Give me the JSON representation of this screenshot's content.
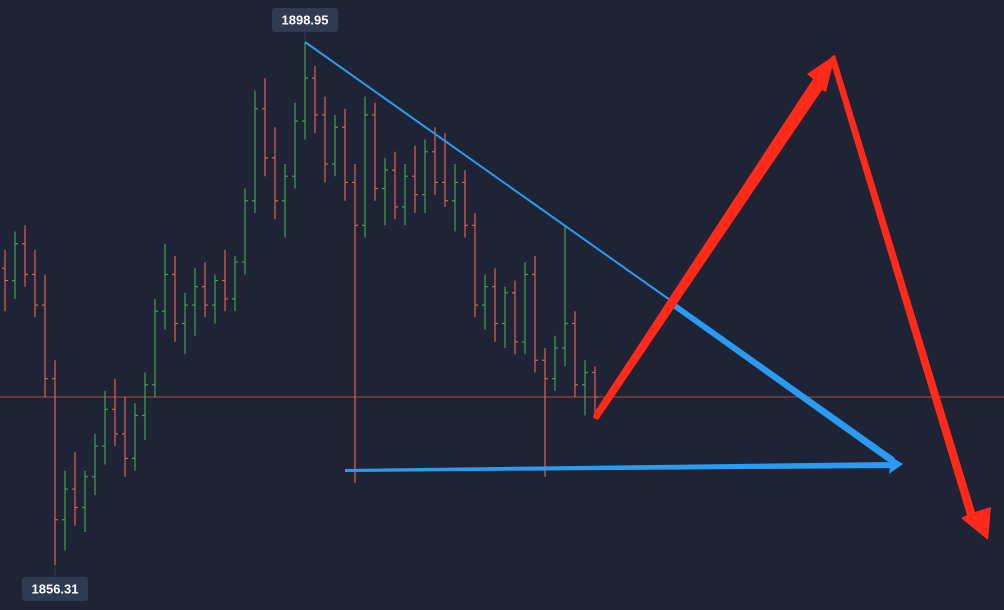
{
  "chart_data": {
    "type": "ohlc",
    "open": [
      1880.5,
      1879.5,
      1882.5,
      1880.0,
      1877.5,
      1871.5,
      1860.0,
      1862.5,
      1861.0,
      1863.5,
      1866.0,
      1869.0,
      1867.0,
      1865.0,
      1868.5,
      1871.0,
      1877.0,
      1880.0,
      1876.0,
      1877.5,
      1879.0,
      1877.5,
      1879.5,
      1878.0,
      1881.0,
      1886.0,
      1893.5,
      1889.5,
      1886.0,
      1888.0,
      1892.5,
      1896.0,
      1893.0,
      1889.0,
      1892.0,
      1887.5,
      1884.0,
      1893.0,
      1887.0,
      1888.5,
      1885.5,
      1888.0,
      1886.5,
      1890.0,
      1887.5,
      1886.0,
      1887.5,
      1884.0,
      1877.5,
      1879.0,
      1876.0,
      1878.5,
      1874.5,
      1880.0,
      1873.0,
      1871.5,
      1874.0,
      1876.0,
      1871.0,
      1872.0
    ],
    "high": [
      1882.0,
      1883.5,
      1884.0,
      1882.0,
      1880.0,
      1873.0,
      1864.0,
      1865.5,
      1864.0,
      1867.0,
      1870.5,
      1871.5,
      1870.0,
      1869.5,
      1872.0,
      1878.0,
      1882.5,
      1881.5,
      1878.5,
      1880.5,
      1881.0,
      1880.0,
      1882.0,
      1881.5,
      1887.0,
      1895.0,
      1896.0,
      1892.0,
      1889.0,
      1894.0,
      1898.95,
      1897.0,
      1894.5,
      1893.0,
      1893.5,
      1889.0,
      1894.5,
      1894.0,
      1889.5,
      1890.0,
      1889.0,
      1890.5,
      1891.0,
      1892.0,
      1891.5,
      1889.0,
      1888.5,
      1885.0,
      1880.0,
      1880.5,
      1879.0,
      1879.5,
      1881.0,
      1881.5,
      1874.0,
      1875.0,
      1884.0,
      1877.0,
      1873.0,
      1872.5
    ],
    "low": [
      1877.0,
      1878.0,
      1879.0,
      1876.5,
      1870.0,
      1856.31,
      1857.5,
      1859.5,
      1859.0,
      1862.0,
      1864.5,
      1866.0,
      1863.5,
      1864.0,
      1866.5,
      1870.0,
      1875.5,
      1874.5,
      1873.5,
      1875.0,
      1876.5,
      1876.0,
      1877.0,
      1877.0,
      1880.0,
      1885.0,
      1888.0,
      1884.5,
      1883.0,
      1887.0,
      1891.0,
      1891.5,
      1887.5,
      1888.0,
      1886.0,
      1863.0,
      1883.0,
      1886.0,
      1884.0,
      1884.5,
      1884.0,
      1885.0,
      1885.0,
      1886.5,
      1885.5,
      1883.5,
      1883.0,
      1876.5,
      1875.5,
      1874.5,
      1874.0,
      1873.5,
      1873.5,
      1872.0,
      1863.5,
      1870.5,
      1872.5,
      1870.0,
      1868.5,
      1868.5
    ],
    "close": [
      1879.5,
      1882.5,
      1880.0,
      1877.5,
      1871.5,
      1860.0,
      1862.5,
      1861.0,
      1863.5,
      1866.0,
      1869.0,
      1867.0,
      1865.0,
      1868.5,
      1871.0,
      1877.0,
      1880.0,
      1876.0,
      1877.5,
      1879.0,
      1877.5,
      1879.5,
      1878.0,
      1881.0,
      1886.0,
      1893.5,
      1889.5,
      1886.0,
      1888.0,
      1892.5,
      1896.0,
      1893.0,
      1889.0,
      1892.0,
      1887.5,
      1884.0,
      1893.0,
      1887.0,
      1888.5,
      1885.5,
      1888.0,
      1886.5,
      1890.0,
      1887.5,
      1886.0,
      1887.5,
      1884.0,
      1877.5,
      1879.0,
      1876.0,
      1878.5,
      1874.5,
      1880.0,
      1873.0,
      1871.5,
      1874.0,
      1876.0,
      1871.0,
      1872.0,
      1870.0
    ],
    "high_label": "1898.95",
    "low_label": "1856.31",
    "ylim": [
      1852.64,
      1902.37
    ],
    "up_color": "#3fa34d",
    "down_color": "#e0604e",
    "price_line_color": "#b8443c"
  }
}
